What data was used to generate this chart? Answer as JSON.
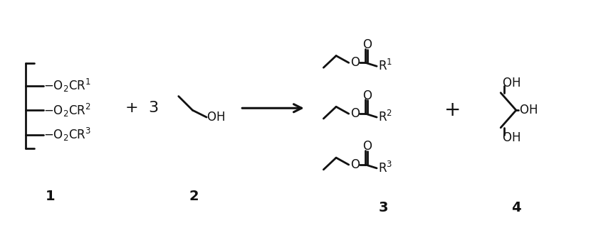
{
  "bg_color": "#ffffff",
  "line_color": "#111111",
  "lw": 2.0,
  "figsize": [
    8.3,
    3.38
  ],
  "dpi": 100,
  "comp1_label": "1",
  "comp2_label": "2",
  "comp3_label": "3",
  "comp4_label": "4",
  "plus_fontsize": 16,
  "label_fontsize": 14,
  "chem_fontsize": 12
}
